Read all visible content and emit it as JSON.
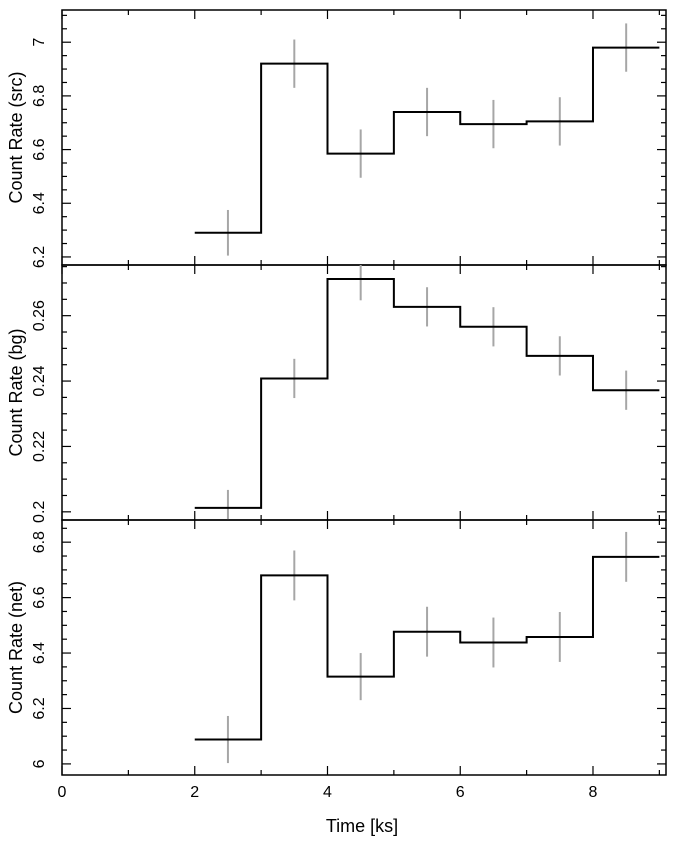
{
  "figure": {
    "xlabel": "Time [ks]",
    "x_ticks": [
      "0",
      "2",
      "4",
      "6",
      "8"
    ]
  },
  "chart_data": [
    {
      "type": "line",
      "ylabel": "Count Rate (src)",
      "xlim": [
        0,
        9.1
      ],
      "ylim": [
        6.17,
        7.12
      ],
      "y_ticks": [
        6.2,
        6.4,
        6.6,
        6.8,
        7
      ],
      "y_tick_labels": [
        "6.2",
        "6.4",
        "6.6",
        "6.8",
        "7"
      ],
      "bin_edges": [
        2,
        3,
        4,
        5,
        6,
        7,
        8,
        9
      ],
      "x": [
        2.5,
        3.5,
        4.5,
        5.5,
        6.5,
        7.5,
        8.5
      ],
      "values": [
        6.29,
        6.92,
        6.585,
        6.74,
        6.695,
        6.705,
        6.98
      ],
      "errors": [
        0.085,
        0.09,
        0.09,
        0.09,
        0.09,
        0.09,
        0.09
      ]
    },
    {
      "type": "line",
      "ylabel": "Count Rate (bg)",
      "xlim": [
        0,
        9.1
      ],
      "ylim": [
        0.1975,
        0.2755
      ],
      "y_ticks": [
        0.2,
        0.22,
        0.24,
        0.26
      ],
      "y_tick_labels": [
        "0.2",
        "0.22",
        "0.24",
        "0.26"
      ],
      "bin_edges": [
        2,
        3,
        4,
        5,
        6,
        7,
        8,
        9
      ],
      "x": [
        2.5,
        3.5,
        4.5,
        5.5,
        6.5,
        7.5,
        8.5
      ],
      "values": [
        0.2012,
        0.2408,
        0.2712,
        0.2627,
        0.2566,
        0.2477,
        0.2372
      ],
      "errors": [
        0.0055,
        0.006,
        0.0065,
        0.006,
        0.006,
        0.006,
        0.006
      ]
    },
    {
      "type": "line",
      "ylabel": "Count Rate (net)",
      "xlim": [
        0,
        9.1
      ],
      "ylim": [
        5.96,
        6.88
      ],
      "y_ticks": [
        6,
        6.2,
        6.4,
        6.6,
        6.8
      ],
      "y_tick_labels": [
        "6",
        "6.2",
        "6.4",
        "6.6",
        "6.8"
      ],
      "bin_edges": [
        2,
        3,
        4,
        5,
        6,
        7,
        8,
        9
      ],
      "x": [
        2.5,
        3.5,
        4.5,
        5.5,
        6.5,
        7.5,
        8.5
      ],
      "values": [
        6.088,
        6.68,
        6.315,
        6.477,
        6.438,
        6.458,
        6.747
      ],
      "errors": [
        0.085,
        0.09,
        0.085,
        0.09,
        0.09,
        0.09,
        0.09
      ]
    }
  ],
  "colors": {
    "step_line": "#000000",
    "error_bar": "#a6a6a6",
    "frame": "#000000"
  }
}
